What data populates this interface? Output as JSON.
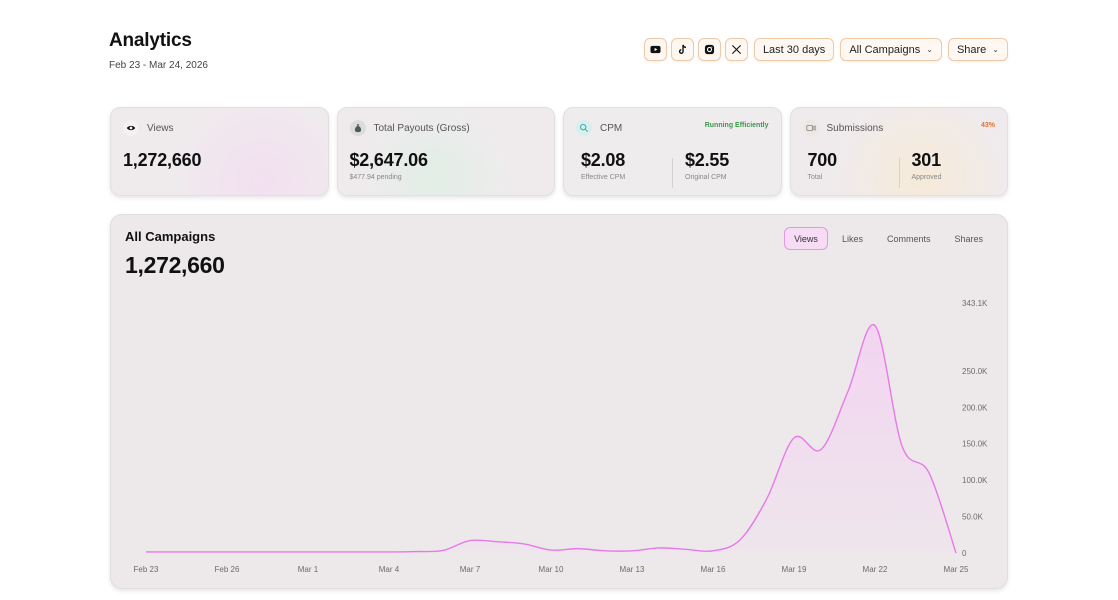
{
  "header": {
    "title": "Analytics",
    "date_range": "Feb 23 - Mar 24, 2026"
  },
  "toolbar": {
    "platforms": [
      "youtube-icon",
      "tiktok-icon",
      "instagram-icon",
      "x-icon"
    ],
    "period_label": "Last 30 days",
    "campaign_label": "All Campaigns",
    "share_label": "Share"
  },
  "cards": {
    "views": {
      "label": "Views",
      "value": "1,272,660"
    },
    "payouts": {
      "label": "Total Payouts (Gross)",
      "value": "$2,647.06",
      "sub": "$477.94 pending"
    },
    "cpm": {
      "label": "CPM",
      "badge": "Running Efficiently",
      "effective_value": "$2.08",
      "effective_label": "Effective CPM",
      "original_value": "$2.55",
      "original_label": "Original CPM"
    },
    "submissions": {
      "label": "Submissions",
      "badge": "43%",
      "total_value": "700",
      "total_label": "Total",
      "approved_value": "301",
      "approved_label": "Approved"
    }
  },
  "colors": {
    "accent": "#e879e8",
    "accent_fill": "#f3d3f1",
    "badge_green": "#3a9b4a",
    "badge_orange": "#e4712a"
  },
  "panel": {
    "title": "All Campaigns",
    "value": "1,272,660",
    "tabs": [
      "Views",
      "Likes",
      "Comments",
      "Shares"
    ],
    "active_tab": "Views"
  },
  "chart_data": {
    "type": "area",
    "title": "All Campaigns",
    "x_ticks": [
      "Feb 23",
      "Feb 26",
      "Mar 1",
      "Mar 4",
      "Mar 7",
      "Mar 10",
      "Mar 13",
      "Mar 16",
      "Mar 19",
      "Mar 22",
      "Mar 25"
    ],
    "y_ticks": [
      "0",
      "50.0K",
      "100.0K",
      "150.0K",
      "200.0K",
      "250.0K",
      "343.1K"
    ],
    "y_tick_values": [
      0,
      50000,
      100000,
      150000,
      200000,
      250000,
      343100
    ],
    "ylim": [
      0,
      343100
    ],
    "series": [
      {
        "x": [
          "Feb 23",
          "Feb 24",
          "Feb 25",
          "Feb 26",
          "Feb 27",
          "Feb 28",
          "Mar 1",
          "Mar 2",
          "Mar 3",
          "Mar 4",
          "Mar 5",
          "Mar 6",
          "Mar 7",
          "Mar 8",
          "Mar 9",
          "Mar 10",
          "Mar 11",
          "Mar 12",
          "Mar 13",
          "Mar 14",
          "Mar 15",
          "Mar 16",
          "Mar 17",
          "Mar 18",
          "Mar 19",
          "Mar 20",
          "Mar 21",
          "Mar 22",
          "Mar 23",
          "Mar 24",
          "Mar 25"
        ],
        "values": [
          1500,
          1500,
          1500,
          1500,
          1500,
          1500,
          1500,
          1500,
          1500,
          1500,
          2000,
          3500,
          17000,
          15500,
          12500,
          4000,
          6000,
          3000,
          3000,
          7000,
          5000,
          3000,
          18000,
          75000,
          158000,
          142000,
          222000,
          312000,
          147000,
          110000,
          0
        ]
      }
    ],
    "grid": false,
    "legend": "none"
  }
}
